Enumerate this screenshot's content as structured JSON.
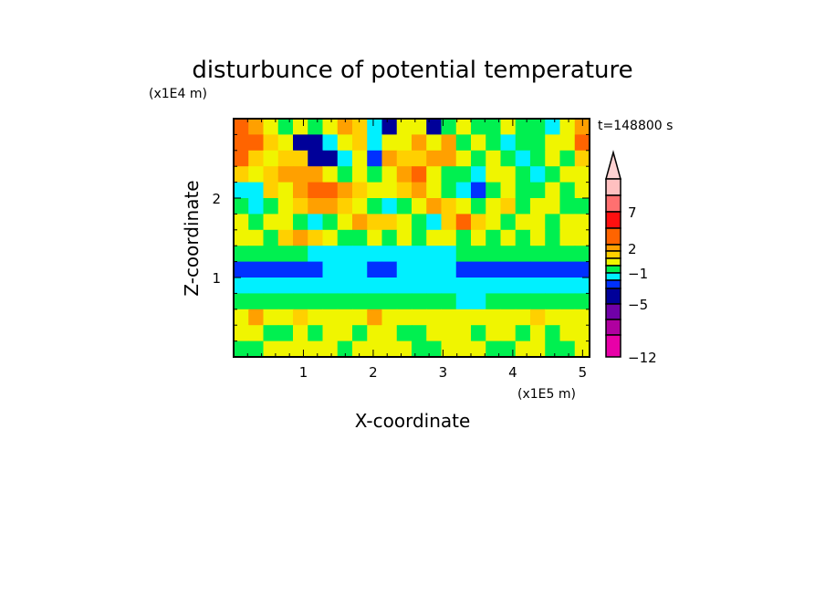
{
  "chart_data": {
    "type": "heatmap",
    "title": "disturbunce of potential temperature",
    "xlabel": "X-coordinate",
    "ylabel": "Z-coordinate",
    "x_unit": "(x1E5 m)",
    "y_unit": "(x1E4 m)",
    "time_label": "t=148800 s",
    "xlim": [
      0,
      5.1
    ],
    "ylim": [
      0,
      3.0
    ],
    "xticks": [
      "1",
      "2",
      "3",
      "4",
      "5"
    ],
    "xtick_values": [
      1,
      2,
      3,
      4,
      5
    ],
    "yticks": [
      "1",
      "2"
    ],
    "ytick_values": [
      1,
      2
    ],
    "colorbar": {
      "labels": [
        "7",
        "2",
        "−1",
        "−5",
        "−12"
      ],
      "label_values": [
        7,
        2,
        -1,
        -5,
        -12
      ],
      "bins": [
        {
          "color": "#ffd2d2",
          "range": ">11"
        },
        {
          "color": "#ffc0c0",
          "range": "9..11"
        },
        {
          "color": "#ff7070",
          "range": "7..9"
        },
        {
          "color": "#ff1010",
          "range": "5..7"
        },
        {
          "color": "#ff6400",
          "range": "3..5"
        },
        {
          "color": "#ffa000",
          "range": "2..3"
        },
        {
          "color": "#ffd000",
          "range": "1.5..2"
        },
        {
          "color": "#f0f500",
          "range": "1..1.5"
        },
        {
          "color": "#00f050",
          "range": "0..1"
        },
        {
          "color": "#00f0ff",
          "range": "-1..0"
        },
        {
          "color": "#0030ff",
          "range": "-2..-1"
        },
        {
          "color": "#000099",
          "range": "-5..-2"
        },
        {
          "color": "#7000a8",
          "range": "-7..-5"
        },
        {
          "color": "#b000a0",
          "range": "-9..-7"
        },
        {
          "color": "#e800a8",
          "range": "-12..-9"
        }
      ]
    },
    "value_codes": {
      "O": 4,
      "L": 2.5,
      "A": 1.7,
      "Y": 1.2,
      "G": 0.5,
      "C": -0.5,
      "B": -1.5,
      "D": -4
    },
    "grid_rows_top_to_bottom": [
      "OLYGYGYLACDYYDGYGGYGGCYL",
      "OOAYDDCYACYYLYLGYGCGGYYO",
      "OAYAADDCYBLAALLYGYGCGYGA",
      "AYALLLYGYGYLOYGGCYYGCGYY",
      "CCAYLOOLAYYALYGCBGYGGYGY",
      "GCGYALLAYGCGYLAYGYAGYYGG",
      "YGYYGCGYLAAYGCAOAYGYYGYY",
      "YYGALAYGGYGYGYYGYGYGYGYY",
      "GGGGGCCCCCCCCCCGGGGGGGGG",
      "BBBBBBCCCBBCCCCBBBBBBBBB",
      "CCCCCCCCCCCCCCCCCCCCCCCC",
      "GGGGGGGGGGGGGGGCCGGGGGGG",
      "YLYYAYYYYLYYYYYYYYYYAYYY",
      "YYGGYGYYGYYGGYYYGYYGYGYY",
      "GGYYYYYGYYYYGGYYYGGYYGGY"
    ]
  }
}
